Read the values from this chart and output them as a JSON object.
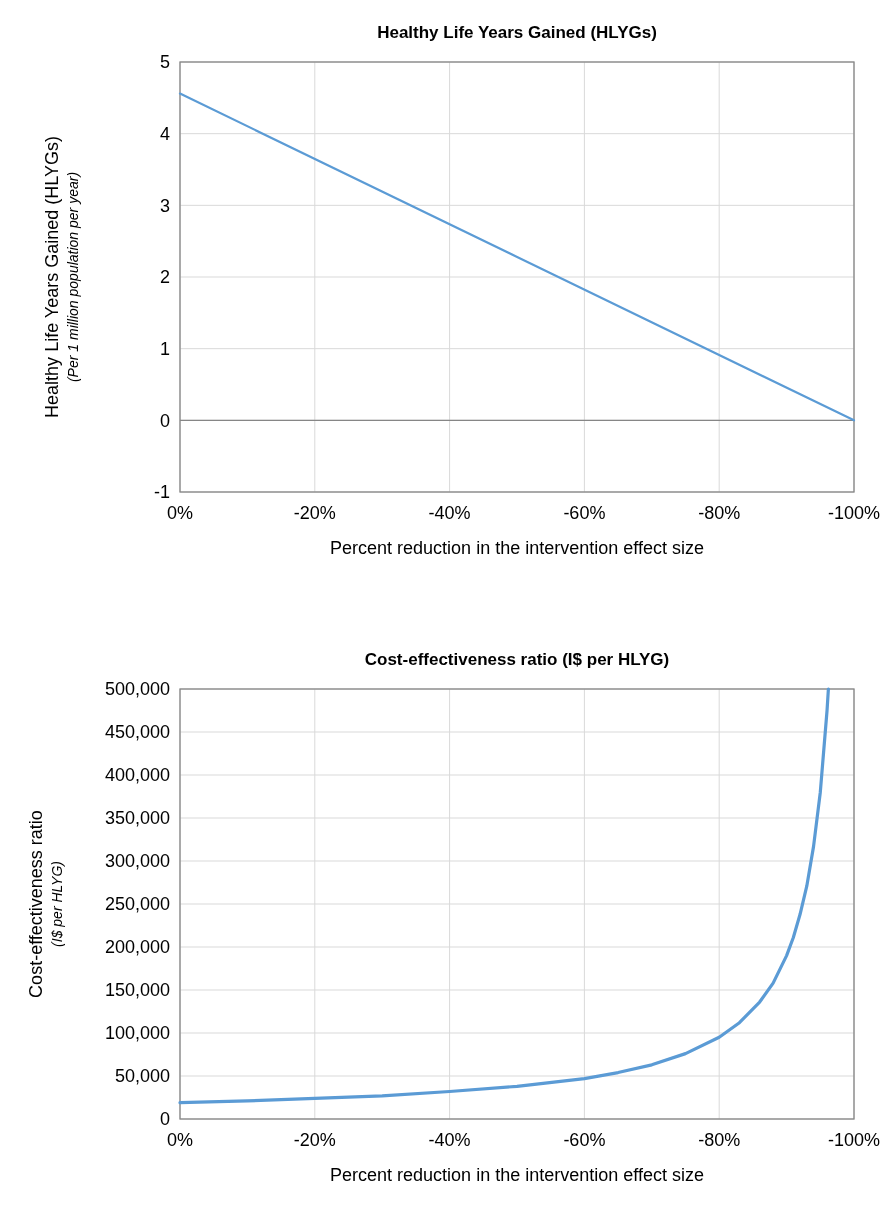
{
  "chart_data": [
    {
      "type": "line",
      "title": "Healthy Life Years Gained (HLYGs)",
      "xlabel": "Percent reduction in the intervention effect size",
      "ylabel": "Healthy Life Years Gained (HLYGs)\n(Per 1 million population per year)",
      "x": [
        0,
        -100
      ],
      "series": [
        {
          "color": "#5b9bd5",
          "values": [
            4.56,
            0
          ]
        }
      ],
      "xlim": [
        0,
        -100
      ],
      "xticks": [
        {
          "value": 0,
          "label": "0%"
        },
        {
          "value": -20,
          "label": "-20%"
        },
        {
          "value": -40,
          "label": "-40%"
        },
        {
          "value": -60,
          "label": "-60%"
        },
        {
          "value": -80,
          "label": "-80%"
        },
        {
          "value": -100,
          "label": "-100%"
        }
      ],
      "ylim": [
        -1,
        5
      ],
      "yticks": [
        -1,
        0,
        1,
        2,
        3,
        4,
        5
      ],
      "grid": true
    },
    {
      "type": "line",
      "title": "Cost-effectiveness ratio (I$ per HLYG)",
      "xlabel": "Percent reduction in the intervention effect size",
      "ylabel": "Cost-effectiveness ratio\n(I$ per HLYG)",
      "x": [
        0,
        -10,
        -20,
        -30,
        -40,
        -50,
        -60,
        -65,
        -70,
        -75,
        -80,
        -83,
        -86,
        -88,
        -90,
        -91,
        -92,
        -93,
        -94,
        -95,
        -96,
        -96.2
      ],
      "series": [
        {
          "color": "#5b9bd5",
          "values": [
            19000,
            21000,
            24000,
            27000,
            32000,
            38000,
            47000,
            54000,
            63000,
            76000,
            95000,
            112000,
            136000,
            158000,
            190000,
            211000,
            238000,
            271000,
            317000,
            380000,
            475000,
            500000
          ]
        }
      ],
      "xlim": [
        0,
        -100
      ],
      "xticks": [
        {
          "value": 0,
          "label": "0%"
        },
        {
          "value": -20,
          "label": "-20%"
        },
        {
          "value": -40,
          "label": "-40%"
        },
        {
          "value": -60,
          "label": "-60%"
        },
        {
          "value": -80,
          "label": "-80%"
        },
        {
          "value": -100,
          "label": "-100%"
        }
      ],
      "ylim": [
        0,
        500000
      ],
      "yticks": [
        0,
        {
          "value": 50000,
          "label": "50,000"
        },
        {
          "value": 100000,
          "label": "100,000"
        },
        {
          "value": 150000,
          "label": "150,000"
        },
        {
          "value": 200000,
          "label": "200,000"
        },
        {
          "value": 250000,
          "label": "250,000"
        },
        {
          "value": 300000,
          "label": "300,000"
        },
        {
          "value": 350000,
          "label": "350,000"
        },
        {
          "value": 400000,
          "label": "400,000"
        },
        {
          "value": 450000,
          "label": "450,000"
        },
        {
          "value": 500000,
          "label": "500,000"
        }
      ],
      "grid": true
    }
  ]
}
